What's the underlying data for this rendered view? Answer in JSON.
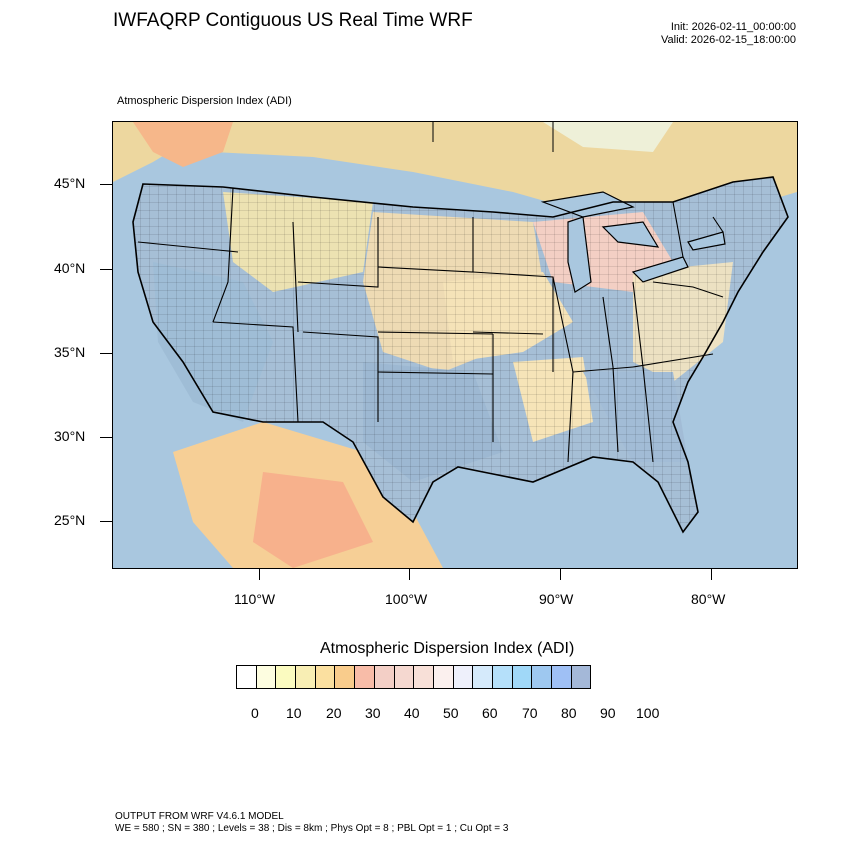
{
  "header": {
    "title": "IWFAQRP Contiguous US Real Time WRF",
    "init": "Init: 2026-02-11_00:00:00",
    "valid": "Valid: 2026-02-15_18:00:00"
  },
  "map": {
    "subtitle": "Atmospheric Dispersion Index   (ADI)",
    "lat_labels": [
      "45°N",
      "40°N",
      "35°N",
      "30°N",
      "25°N"
    ],
    "lon_labels": [
      "110°W",
      "100°W",
      "90°W",
      "80°W"
    ]
  },
  "colorbar": {
    "title": "Atmospheric Dispersion Index  (ADI)",
    "colors": [
      "#ffffff",
      "#fdfde0",
      "#fbfbc0",
      "#f8eeb4",
      "#fbe0a0",
      "#f9cc8c",
      "#f8bca8",
      "#f3cfc6",
      "#f5d8d0",
      "#f8e0d8",
      "#fbf0ee",
      "#eef0fb",
      "#d5eafb",
      "#b5e0fa",
      "#a0d8f8",
      "#9ec8f0",
      "#9fc0f5",
      "#a4b8d8"
    ],
    "labels": [
      "0",
      "10",
      "20",
      "30",
      "40",
      "50",
      "60",
      "70",
      "80",
      "90",
      "100"
    ]
  },
  "footer": {
    "line1": "OUTPUT FROM WRF V4.6.1 MODEL",
    "line2": "WE = 580 ; SN = 380 ; Levels = 38 ; Dis = 8km ; Phys Opt = 8 ; PBL Opt = 1 ; Cu Opt = 3"
  }
}
